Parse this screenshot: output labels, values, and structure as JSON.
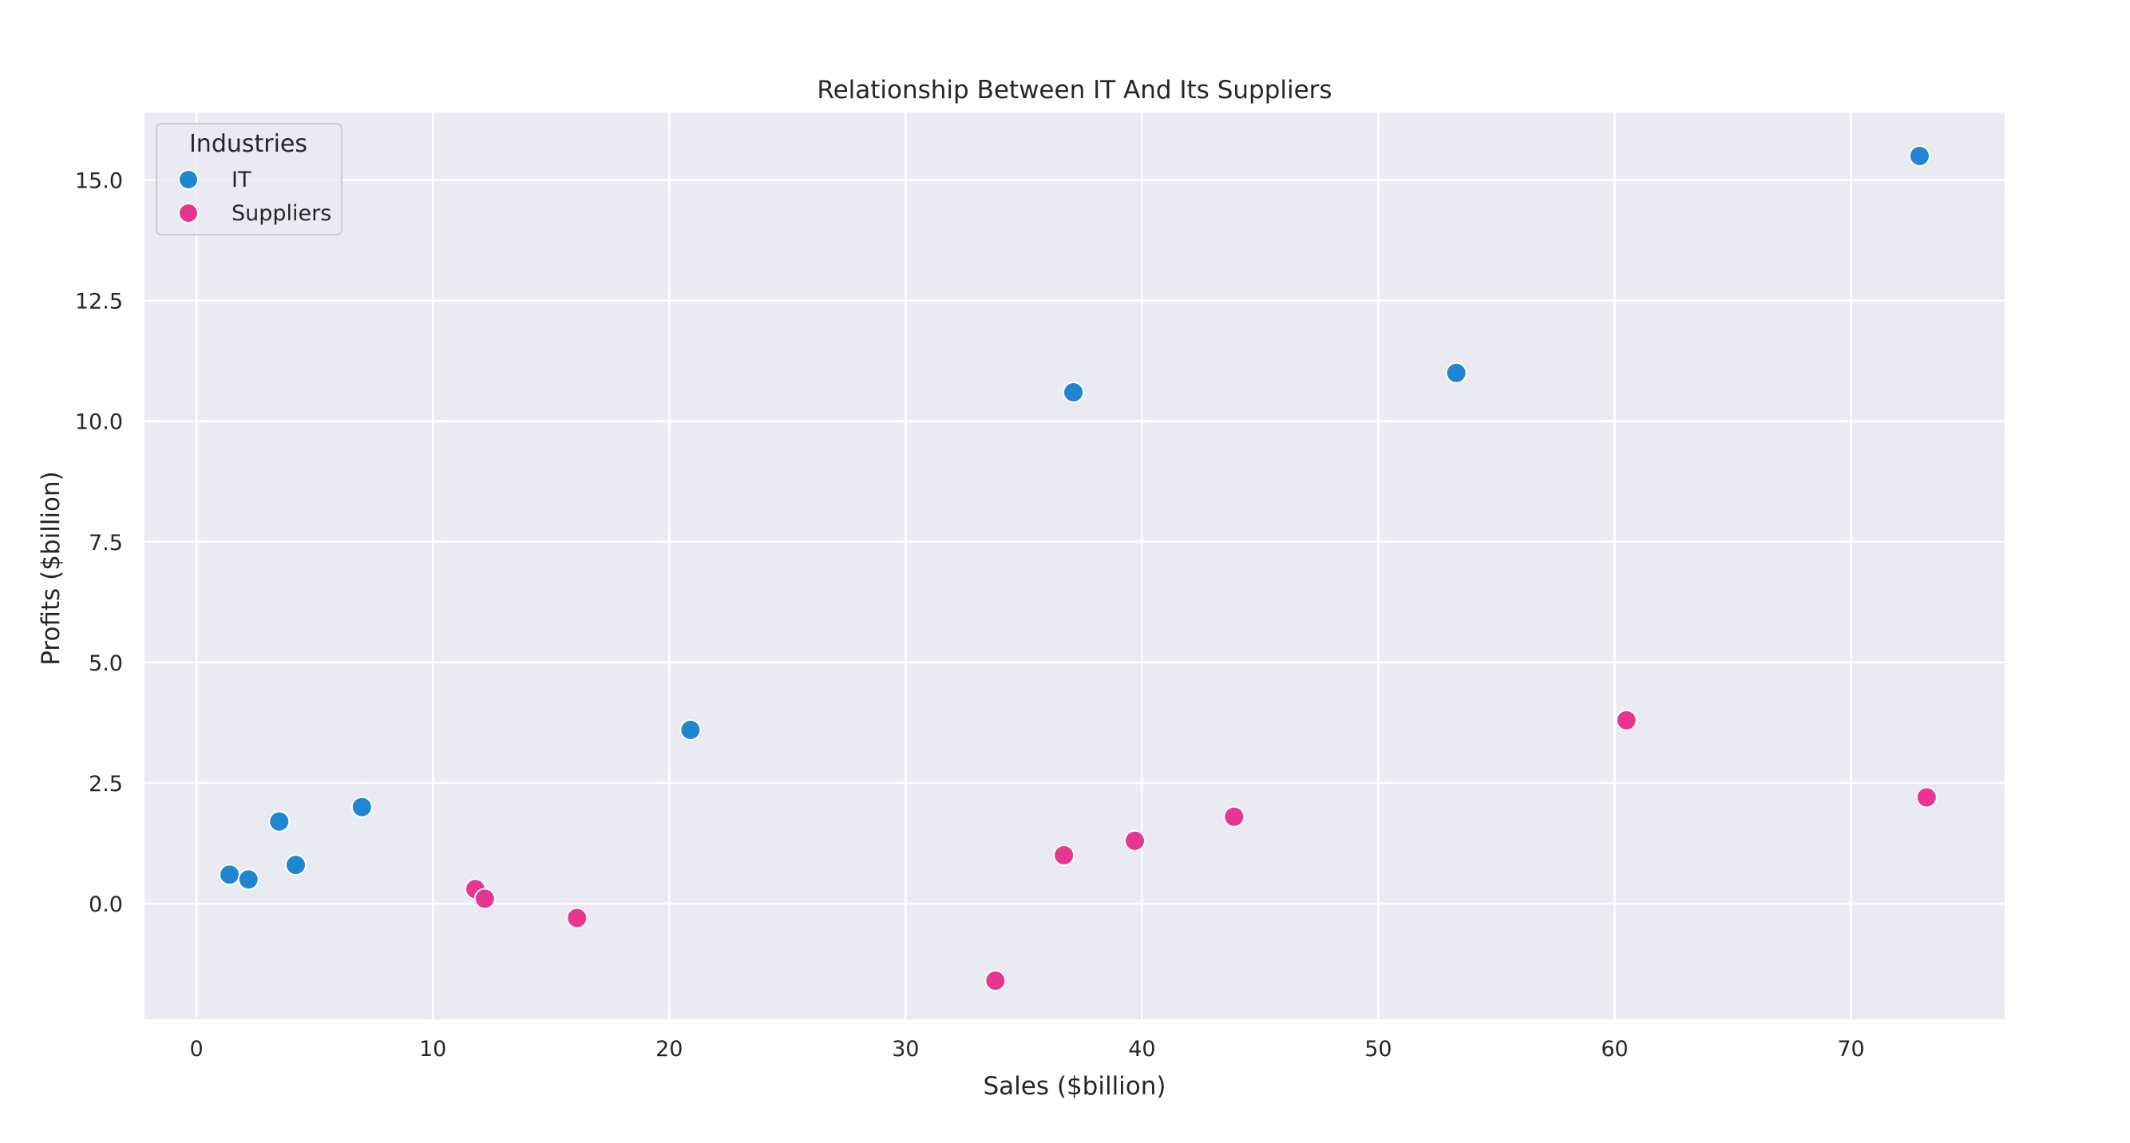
{
  "chart_data": {
    "type": "scatter",
    "title": "Relationship Between IT And Its Suppliers",
    "xlabel": "Sales ($billion)",
    "ylabel": "Profits ($billion)",
    "xlim": [
      -2.2,
      76.5
    ],
    "ylim": [
      -2.4,
      16.4
    ],
    "xticks": [
      0,
      10,
      20,
      30,
      40,
      50,
      60,
      70
    ],
    "yticks": [
      0.0,
      2.5,
      5.0,
      7.5,
      10.0,
      12.5,
      15.0
    ],
    "grid": true,
    "background_color": "#eaeaf2",
    "grid_color": "#ffffff",
    "legend": {
      "title": "Industries",
      "placement": "upper-left"
    },
    "series": [
      {
        "name": "IT",
        "color": "#1f87d0",
        "points": [
          {
            "x": 1.4,
            "y": 0.6
          },
          {
            "x": 2.2,
            "y": 0.5
          },
          {
            "x": 3.5,
            "y": 1.7
          },
          {
            "x": 4.2,
            "y": 0.8
          },
          {
            "x": 7.0,
            "y": 2.0
          },
          {
            "x": 20.9,
            "y": 3.6
          },
          {
            "x": 37.1,
            "y": 10.6
          },
          {
            "x": 53.3,
            "y": 11.0
          },
          {
            "x": 72.9,
            "y": 15.5
          }
        ]
      },
      {
        "name": "Suppliers",
        "color": "#e83592",
        "points": [
          {
            "x": 11.8,
            "y": 0.3
          },
          {
            "x": 12.2,
            "y": 0.1
          },
          {
            "x": 16.1,
            "y": -0.3
          },
          {
            "x": 33.8,
            "y": -1.6
          },
          {
            "x": 36.7,
            "y": 1.0
          },
          {
            "x": 39.7,
            "y": 1.3
          },
          {
            "x": 43.9,
            "y": 1.8
          },
          {
            "x": 60.5,
            "y": 3.8
          },
          {
            "x": 73.2,
            "y": 2.2
          }
        ]
      }
    ]
  }
}
